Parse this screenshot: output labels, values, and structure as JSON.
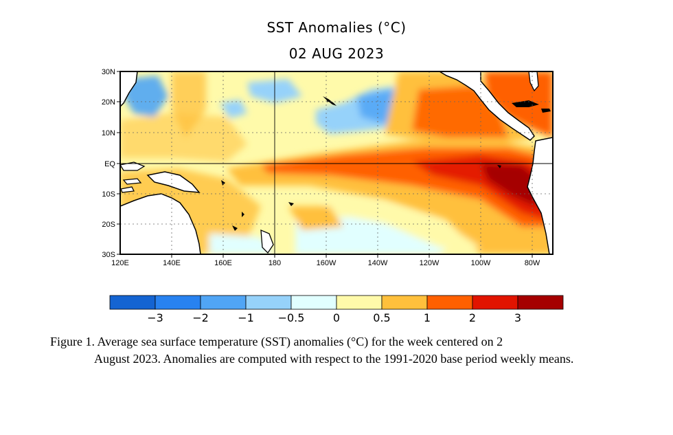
{
  "title": "SST Anomalies (°C)",
  "date": "02 AUG 2023",
  "map": {
    "lat_labels": [
      "30N",
      "20N",
      "10N",
      "EQ",
      "10S",
      "20S",
      "30S"
    ],
    "lon_labels": [
      "120E",
      "140E",
      "160E",
      "180",
      "160W",
      "140W",
      "120W",
      "100W",
      "80W"
    ],
    "lat_range": [
      -30,
      30
    ],
    "lon_range": [
      120,
      288
    ],
    "grid": "dotted"
  },
  "colorbar": {
    "labels": [
      "−3",
      "−2",
      "−1",
      "−0.5",
      "0",
      "0.5",
      "1",
      "2",
      "3"
    ],
    "colors": [
      "#1464d2",
      "#2882f0",
      "#50a5f5",
      "#96d2fa",
      "#e1ffff",
      "#fffaaa",
      "#ffc03c",
      "#ff6000",
      "#e11400",
      "#a50000"
    ]
  },
  "caption": {
    "line1": "Figure 1. Average sea surface temperature (SST) anomalies (°C) for the week centered on 2",
    "rest": "August 2023.  Anomalies are computed with respect to the 1991-2020 base period weekly means."
  }
}
